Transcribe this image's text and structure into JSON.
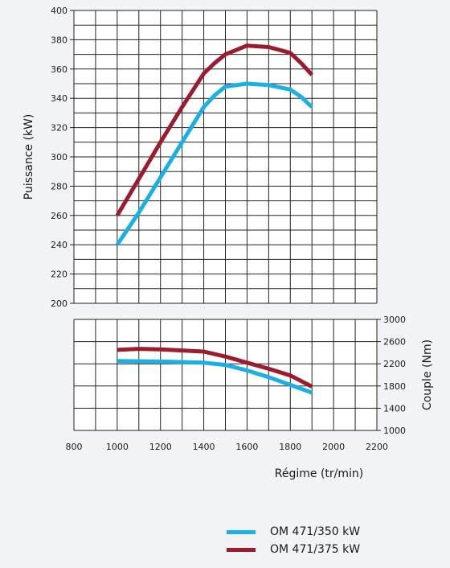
{
  "chart_data": [
    {
      "type": "line",
      "title": "",
      "xlabel": "",
      "ylabel": "Puissance (kW)",
      "xlim": [
        800,
        2200
      ],
      "ylim": [
        200,
        400
      ],
      "yticks": [
        200,
        220,
        240,
        260,
        280,
        300,
        320,
        340,
        360,
        380,
        400
      ],
      "grid": true,
      "series": [
        {
          "name": "OM 471/350 kW",
          "color": "#1ab0e6",
          "x": [
            1000,
            1100,
            1200,
            1300,
            1400,
            1450,
            1500,
            1600,
            1700,
            1800,
            1850,
            1900
          ],
          "y": [
            240,
            262,
            286,
            310,
            334,
            342,
            348,
            350,
            349,
            346,
            341,
            334
          ]
        },
        {
          "name": "OM 471/375 kW",
          "color": "#9b1c2e",
          "x": [
            1000,
            1100,
            1200,
            1300,
            1400,
            1450,
            1500,
            1600,
            1700,
            1750,
            1800,
            1850,
            1900
          ],
          "y": [
            260,
            285,
            310,
            334,
            357,
            364,
            370,
            376,
            375,
            373,
            371,
            364,
            356
          ]
        }
      ]
    },
    {
      "type": "line",
      "title": "",
      "xlabel": "Régime (tr/min)",
      "ylabel": "Couple (Nm)",
      "xlim": [
        800,
        2200
      ],
      "ylim": [
        1000,
        3000
      ],
      "xticks": [
        800,
        1000,
        1200,
        1400,
        1600,
        1800,
        2000,
        2200
      ],
      "yticks": [
        1000,
        1400,
        1800,
        2200,
        2600,
        3000
      ],
      "grid": true,
      "series": [
        {
          "name": "OM 471/350 kW",
          "color": "#1ab0e6",
          "x": [
            1000,
            1200,
            1400,
            1500,
            1600,
            1700,
            1800,
            1900
          ],
          "y": [
            2250,
            2240,
            2220,
            2180,
            2080,
            1960,
            1820,
            1680
          ]
        },
        {
          "name": "OM 471/375 kW",
          "color": "#9b1c2e",
          "x": [
            1000,
            1100,
            1200,
            1300,
            1400,
            1500,
            1600,
            1700,
            1800,
            1900
          ],
          "y": [
            2450,
            2470,
            2460,
            2440,
            2420,
            2330,
            2220,
            2110,
            1990,
            1790
          ]
        }
      ]
    }
  ],
  "legend": [
    {
      "label": "OM 471/350 kW",
      "color": "#1ab0e6"
    },
    {
      "label": "OM 471/375 kW",
      "color": "#9b1c2e"
    }
  ]
}
